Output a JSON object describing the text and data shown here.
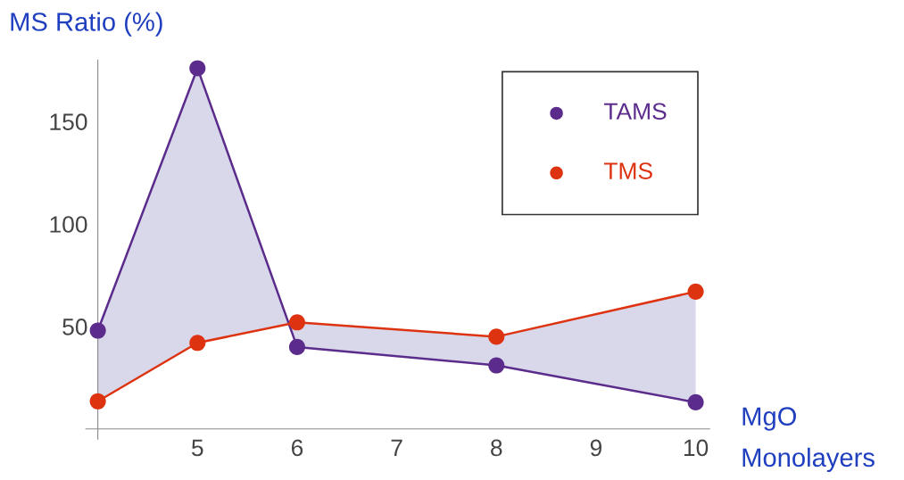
{
  "chart_data": {
    "type": "line",
    "xlabel": "MgO\nMonolayers",
    "ylabel": "MS Ratio (%)",
    "x": [
      4,
      5,
      6,
      8,
      10
    ],
    "series": [
      {
        "name": "TAMS",
        "color": "#5b2c8c",
        "values": [
          48,
          176,
          40,
          31,
          13
        ],
        "lower": [
          13.5,
          42,
          52,
          45,
          67
        ],
        "upper": [
          48,
          176,
          40,
          31,
          13
        ]
      },
      {
        "name": "TMS",
        "color": "#dd3311",
        "values": [
          13.5,
          42,
          52,
          45,
          67
        ]
      }
    ],
    "xlim": [
      3.88,
      10.14
    ],
    "ylim": [
      -5,
      180
    ],
    "xticks": [
      {
        "value": 4,
        "label": null
      },
      5,
      6,
      7,
      8,
      9,
      10
    ],
    "yticks": [
      50,
      100,
      150
    ],
    "marker": "circle",
    "legend": "top right",
    "grid": false
  }
}
